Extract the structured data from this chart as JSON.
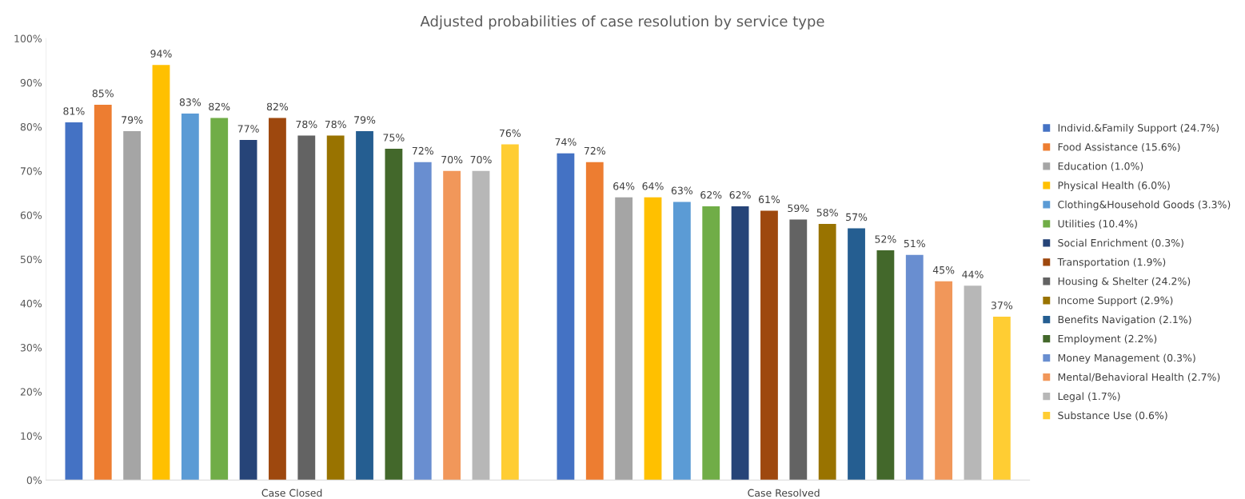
{
  "chart_data": {
    "type": "bar",
    "title": "Adjusted probabilities of case resolution by service type",
    "categories": [
      "Case Closed",
      "Case Resolved"
    ],
    "series": [
      {
        "name": "Individ.&Family Support (24.7%)",
        "color": "#4472c4",
        "values": [
          81,
          74
        ],
        "value_labels": [
          "81%",
          "74%"
        ]
      },
      {
        "name": "Food Assistance (15.6%)",
        "color": "#ed7d31",
        "values": [
          85,
          72
        ],
        "value_labels": [
          "85%",
          "72%"
        ]
      },
      {
        "name": "Education (1.0%)",
        "color": "#a5a5a5",
        "values": [
          79,
          64
        ],
        "value_labels": [
          "79%",
          "64%"
        ]
      },
      {
        "name": "Physical Health (6.0%)",
        "color": "#ffc000",
        "values": [
          94,
          64
        ],
        "value_labels": [
          "94%",
          "64%"
        ]
      },
      {
        "name": "Clothing&Household Goods (3.3%)",
        "color": "#5b9bd5",
        "values": [
          83,
          63
        ],
        "value_labels": [
          "83%",
          "63%"
        ]
      },
      {
        "name": "Utilities (10.4%)",
        "color": "#70ad47",
        "values": [
          82,
          62
        ],
        "value_labels": [
          "82%",
          "62%"
        ]
      },
      {
        "name": "Social Enrichment (0.3%)",
        "color": "#264478",
        "values": [
          77,
          62
        ],
        "value_labels": [
          "77%",
          "62%"
        ]
      },
      {
        "name": "Transportation (1.9%)",
        "color": "#9e480e",
        "values": [
          82,
          61
        ],
        "value_labels": [
          "82%",
          "61%"
        ]
      },
      {
        "name": "Housing & Shelter (24.2%)",
        "color": "#636363",
        "values": [
          78,
          59
        ],
        "value_labels": [
          "78%",
          "59%"
        ]
      },
      {
        "name": "Income Support (2.9%)",
        "color": "#997300",
        "values": [
          78,
          58
        ],
        "value_labels": [
          "78%",
          "58%"
        ]
      },
      {
        "name": "Benefits Navigation (2.1%)",
        "color": "#255e91",
        "values": [
          79,
          57
        ],
        "value_labels": [
          "79%",
          "57%"
        ]
      },
      {
        "name": "Employment (2.2%)",
        "color": "#43682b",
        "values": [
          75,
          52
        ],
        "value_labels": [
          "75%",
          "52%"
        ]
      },
      {
        "name": "Money Management (0.3%)",
        "color": "#698ed0",
        "values": [
          72,
          51
        ],
        "value_labels": [
          "72%",
          "51%"
        ]
      },
      {
        "name": "Mental/Behavioral Health (2.7%)",
        "color": "#f1975a",
        "values": [
          70,
          45
        ],
        "value_labels": [
          "70%",
          "45%"
        ]
      },
      {
        "name": "Legal (1.7%)",
        "color": "#b7b7b7",
        "values": [
          70,
          44
        ],
        "value_labels": [
          "70%",
          "44%"
        ]
      },
      {
        "name": "Substance Use (0.6%)",
        "color": "#ffcd33",
        "values": [
          76,
          37
        ],
        "value_labels": [
          "76%",
          "37%"
        ]
      }
    ],
    "ylim": [
      0,
      100
    ],
    "yticks": [
      {
        "value": 0,
        "label": "0%"
      },
      {
        "value": 10,
        "label": "10%"
      },
      {
        "value": 20,
        "label": "20%"
      },
      {
        "value": 30,
        "label": "30%"
      },
      {
        "value": 40,
        "label": "40%"
      },
      {
        "value": 50,
        "label": "50%"
      },
      {
        "value": 60,
        "label": "60%"
      },
      {
        "value": 70,
        "label": "70%"
      },
      {
        "value": 80,
        "label": "80%"
      },
      {
        "value": 90,
        "label": "90%"
      },
      {
        "value": 100,
        "label": "100%"
      }
    ],
    "grid": false,
    "legend": "right"
  }
}
